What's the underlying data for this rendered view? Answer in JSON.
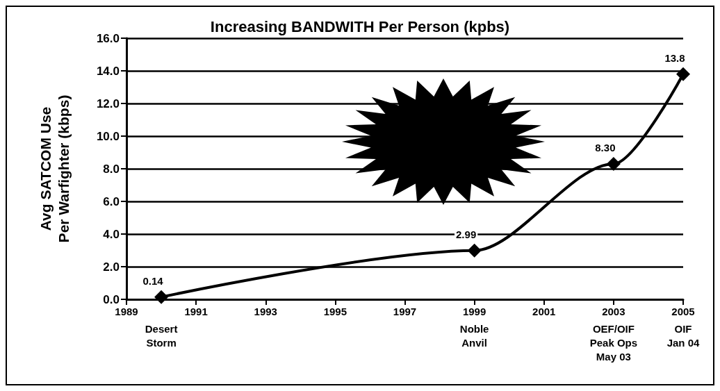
{
  "chart_data": {
    "type": "line",
    "title": "Increasing BANDWITH Per Person (kpbs)",
    "ylabel": "Avg SATCOM Use\nPer Warfighter (kbps)",
    "x": [
      1990,
      1999,
      2003,
      2005
    ],
    "series": [
      {
        "color": "#000000",
        "values": [
          0.14,
          2.99,
          8.3,
          13.8
        ],
        "value_labels": [
          "0.14",
          "2.99",
          "8.30",
          "13.8"
        ]
      }
    ],
    "xlim": [
      1989,
      2005
    ],
    "xticks": [
      1989,
      1991,
      1993,
      1995,
      1997,
      1999,
      2001,
      2003,
      2005
    ],
    "ylim": [
      0,
      16
    ],
    "yticks": [
      {
        "value": 0,
        "label": "0.0"
      },
      {
        "value": 2,
        "label": "2.0"
      },
      {
        "value": 4,
        "label": "4.0"
      },
      {
        "value": 6,
        "label": "6.0"
      },
      {
        "value": 8,
        "label": "8.0"
      },
      {
        "value": 10,
        "label": "10.0"
      },
      {
        "value": 12,
        "label": "12.0"
      },
      {
        "value": 14,
        "label": "14.0"
      },
      {
        "value": 16,
        "label": "16.0"
      }
    ],
    "grid": "y",
    "marker": "diamond",
    "line_style": "solid",
    "annotations": [
      "Desert\nStorm",
      "Noble\nAnvil",
      "OEF/OIF\nPeak Ops\nMay 03",
      "OIF\nJan 04"
    ]
  }
}
